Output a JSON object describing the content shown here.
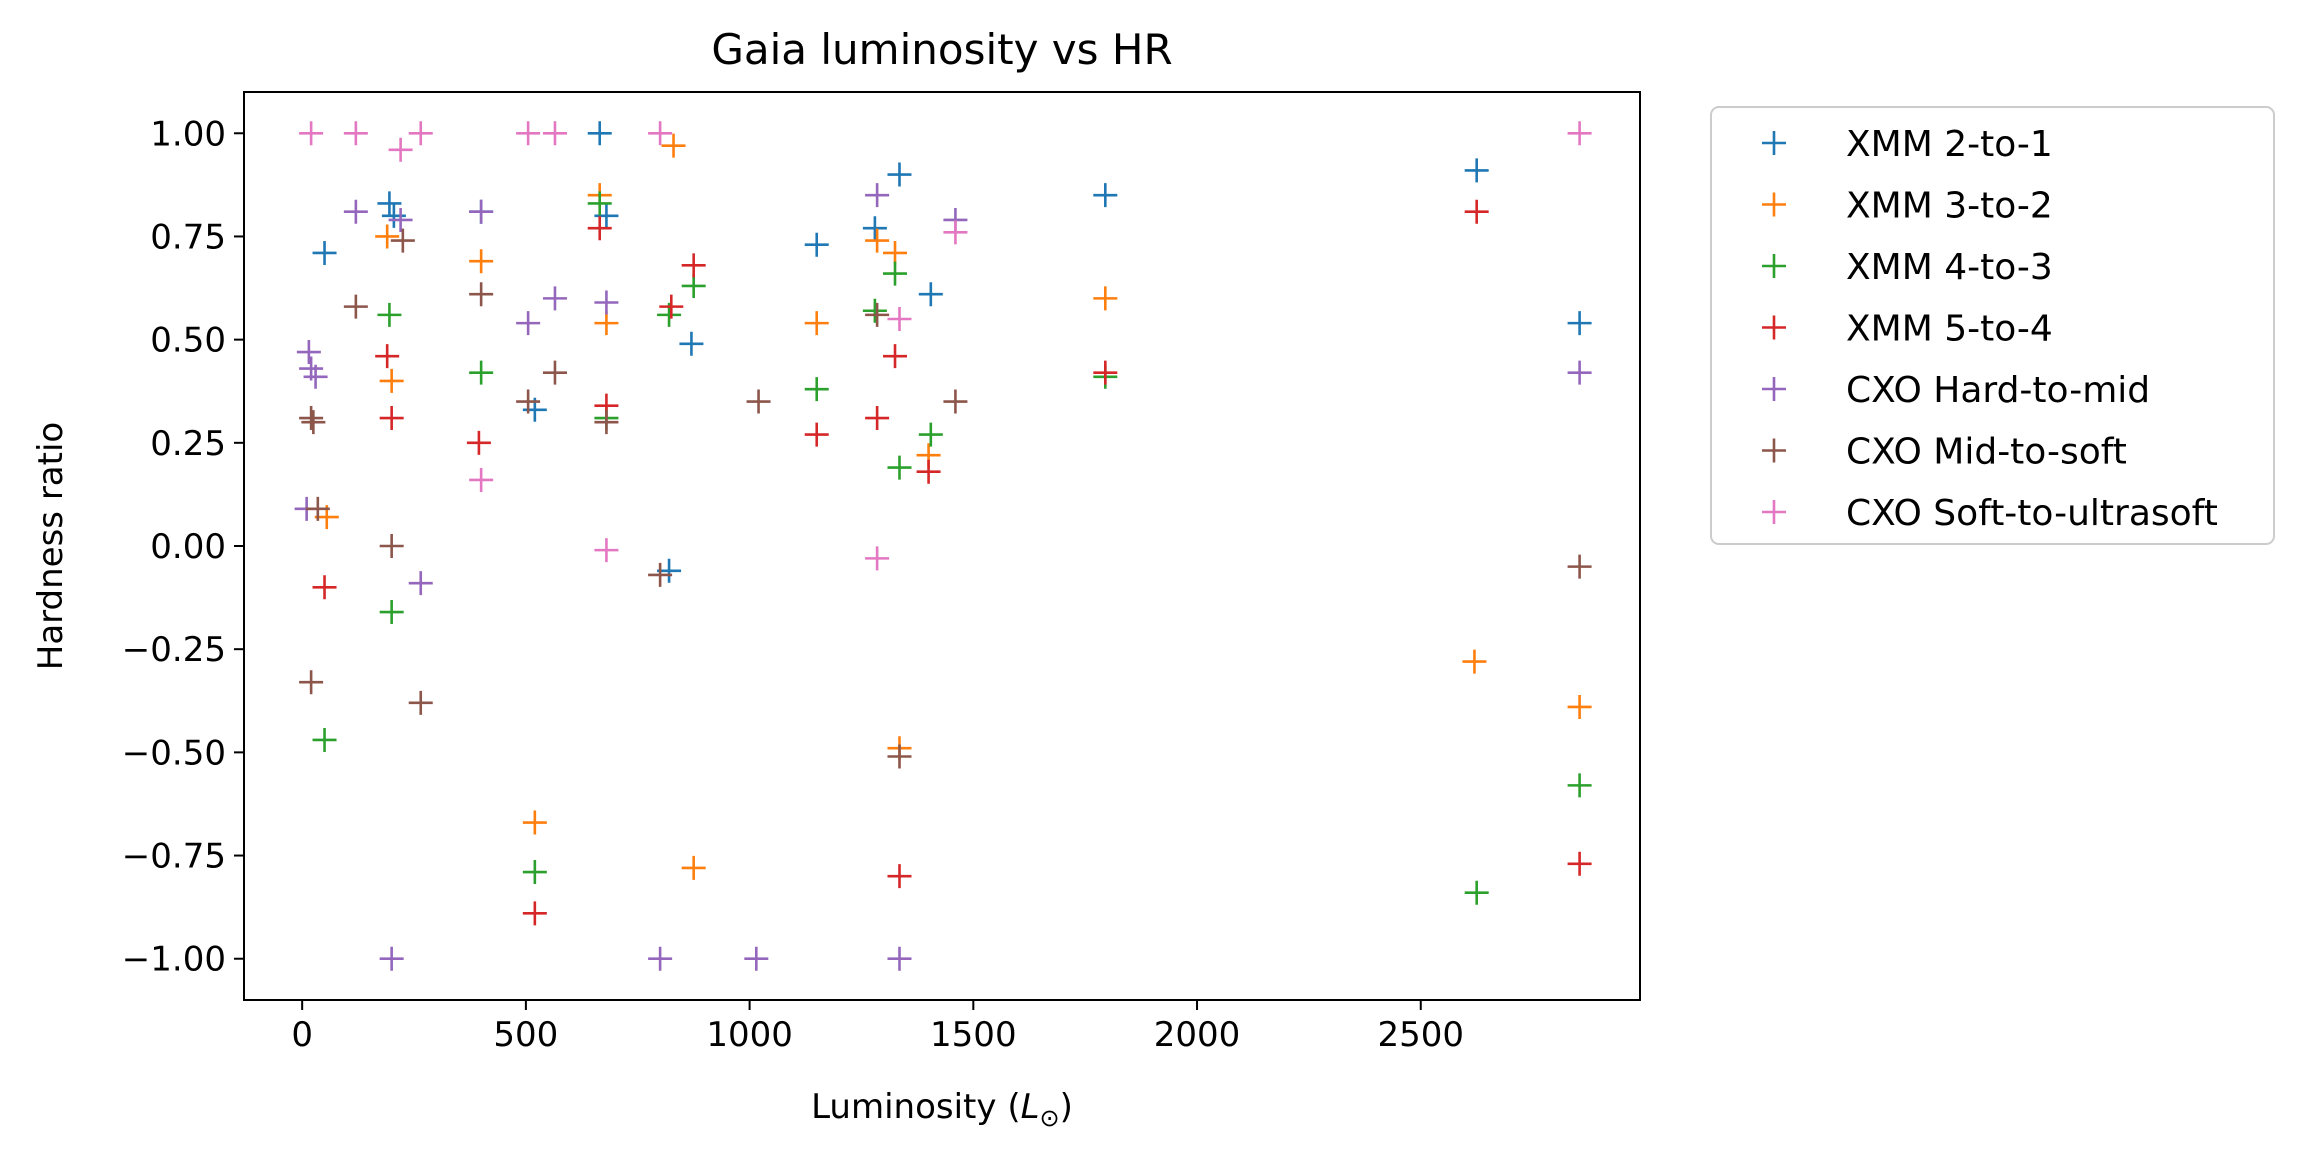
{
  "chart_data": {
    "type": "scatter",
    "title": "Gaia luminosity vs HR",
    "xlabel": "Luminosity",
    "xlabel_symbol": "L",
    "xlabel_subscript": "⊙",
    "ylabel": "Hardness ratio",
    "xlim": [
      -130,
      2990
    ],
    "ylim": [
      -1.1,
      1.1
    ],
    "xticks": [
      0,
      500,
      1000,
      1500,
      2000,
      2500
    ],
    "xtick_labels": [
      "0",
      "500",
      "1000",
      "1500",
      "2000",
      "2500"
    ],
    "yticks": [
      1.0,
      0.75,
      0.5,
      0.25,
      0.0,
      -0.25,
      -0.5,
      -0.75,
      -1.0
    ],
    "ytick_labels": [
      "1.00",
      "0.75",
      "0.50",
      "0.25",
      "0.00",
      "−0.25",
      "−0.50",
      "−0.75",
      "−1.00"
    ],
    "grid": false,
    "legend_placement": "outside-upper-right",
    "marker": "+",
    "series": [
      {
        "name": "XMM 2-to-1",
        "color": "#1f77b4",
        "points": [
          [
            50,
            0.71
          ],
          [
            195,
            0.83
          ],
          [
            205,
            0.8
          ],
          [
            400,
            0.81
          ],
          [
            520,
            0.33
          ],
          [
            665,
            1.0
          ],
          [
            680,
            0.8
          ],
          [
            820,
            -0.06
          ],
          [
            870,
            0.49
          ],
          [
            1150,
            0.73
          ],
          [
            1280,
            0.77
          ],
          [
            1335,
            0.9
          ],
          [
            1405,
            0.61
          ],
          [
            1795,
            0.85
          ],
          [
            2625,
            0.91
          ],
          [
            2855,
            0.54
          ]
        ]
      },
      {
        "name": "XMM 3-to-2",
        "color": "#ff7f0e",
        "points": [
          [
            55,
            0.07
          ],
          [
            190,
            0.75
          ],
          [
            200,
            0.4
          ],
          [
            400,
            0.69
          ],
          [
            520,
            -0.67
          ],
          [
            665,
            0.85
          ],
          [
            680,
            0.54
          ],
          [
            830,
            0.97
          ],
          [
            875,
            -0.78
          ],
          [
            1150,
            0.54
          ],
          [
            1285,
            0.74
          ],
          [
            1325,
            0.71
          ],
          [
            1335,
            -0.49
          ],
          [
            1400,
            0.22
          ],
          [
            1795,
            0.6
          ],
          [
            2620,
            -0.28
          ],
          [
            2855,
            -0.39
          ]
        ]
      },
      {
        "name": "XMM 4-to-3",
        "color": "#2ca02c",
        "points": [
          [
            50,
            -0.47
          ],
          [
            195,
            0.56
          ],
          [
            200,
            -0.16
          ],
          [
            400,
            0.42
          ],
          [
            520,
            -0.79
          ],
          [
            665,
            0.83
          ],
          [
            680,
            0.31
          ],
          [
            820,
            0.56
          ],
          [
            875,
            0.63
          ],
          [
            1150,
            0.38
          ],
          [
            1280,
            0.57
          ],
          [
            1325,
            0.66
          ],
          [
            1335,
            0.19
          ],
          [
            1405,
            0.27
          ],
          [
            1795,
            0.41
          ],
          [
            2625,
            -0.84
          ],
          [
            2855,
            -0.58
          ]
        ]
      },
      {
        "name": "XMM 5-to-4",
        "color": "#d62728",
        "points": [
          [
            50,
            -0.1
          ],
          [
            190,
            0.46
          ],
          [
            200,
            0.31
          ],
          [
            395,
            0.25
          ],
          [
            520,
            -0.89
          ],
          [
            665,
            0.77
          ],
          [
            680,
            0.34
          ],
          [
            825,
            0.58
          ],
          [
            875,
            0.68
          ],
          [
            1150,
            0.27
          ],
          [
            1285,
            0.31
          ],
          [
            1325,
            0.46
          ],
          [
            1335,
            -0.8
          ],
          [
            1400,
            0.18
          ],
          [
            1795,
            0.42
          ],
          [
            2625,
            0.81
          ],
          [
            2855,
            -0.77
          ]
        ]
      },
      {
        "name": "CXO Hard-to-mid",
        "color": "#9467bd",
        "points": [
          [
            10,
            0.09
          ],
          [
            15,
            0.47
          ],
          [
            20,
            0.43
          ],
          [
            30,
            0.41
          ],
          [
            120,
            0.81
          ],
          [
            200,
            -1.0
          ],
          [
            220,
            0.79
          ],
          [
            265,
            -0.09
          ],
          [
            400,
            0.81
          ],
          [
            505,
            0.54
          ],
          [
            565,
            0.6
          ],
          [
            680,
            0.59
          ],
          [
            800,
            -1.0
          ],
          [
            1015,
            -1.0
          ],
          [
            1285,
            0.85
          ],
          [
            1335,
            -1.0
          ],
          [
            1460,
            0.79
          ],
          [
            2855,
            0.42
          ]
        ]
      },
      {
        "name": "CXO Mid-to-soft",
        "color": "#8c564b",
        "points": [
          [
            20,
            -0.33
          ],
          [
            20,
            0.31
          ],
          [
            25,
            0.3
          ],
          [
            35,
            0.09
          ],
          [
            120,
            0.58
          ],
          [
            200,
            0.0
          ],
          [
            225,
            0.74
          ],
          [
            265,
            -0.38
          ],
          [
            400,
            0.61
          ],
          [
            505,
            0.35
          ],
          [
            565,
            0.42
          ],
          [
            680,
            0.3
          ],
          [
            800,
            -0.07
          ],
          [
            1020,
            0.35
          ],
          [
            1285,
            0.56
          ],
          [
            1335,
            -0.51
          ],
          [
            1460,
            0.35
          ],
          [
            2855,
            -0.05
          ]
        ]
      },
      {
        "name": "CXO Soft-to-ultrasoft",
        "color": "#e377c2",
        "points": [
          [
            20,
            1.0
          ],
          [
            120,
            1.0
          ],
          [
            220,
            0.96
          ],
          [
            265,
            1.0
          ],
          [
            400,
            0.16
          ],
          [
            505,
            1.0
          ],
          [
            565,
            1.0
          ],
          [
            680,
            -0.01
          ],
          [
            800,
            1.0
          ],
          [
            1285,
            -0.03
          ],
          [
            1335,
            0.55
          ],
          [
            1460,
            0.76
          ],
          [
            2855,
            1.0
          ]
        ]
      }
    ]
  }
}
